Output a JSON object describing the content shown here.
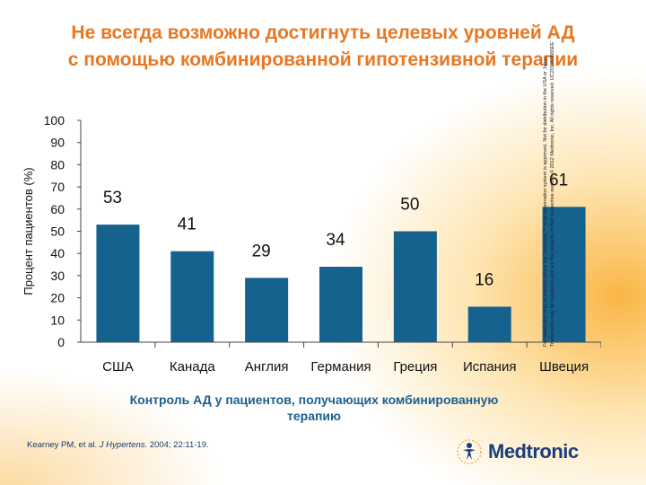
{
  "slide": {
    "title_line1": "Не всегда возможно достигнуть целевых уровней АД",
    "title_line2": "с помощью комбинированной гипотензивной терапии",
    "caption_line1": "Контроль АД у пациентов,  получающих комбинированную",
    "caption_line2": "терапию",
    "citation_authors": "Kearney PM, et al.",
    "citation_journal": "J Hypertens.",
    "citation_details": "2004; 22:11-19.",
    "disclaimer_line1": "For distribution only in markets where the Symplicity™ renal denervation system is approved. Not for distribution in the USA or Japan.",
    "disclaimer_line2": "Trademarks may be registered and are the property of their respective owners. © 2012 Medtronic, Inc. All rights reserved. UC201203565EE",
    "logo_text": "Medtronic",
    "accent_color": "#e87722",
    "bar_color": "#16628e",
    "caption_color": "#1b5f8f"
  },
  "chart_data": {
    "type": "bar",
    "categories": [
      "США",
      "Канада",
      "Англия",
      "Германия",
      "Греция",
      "Испания",
      "Швеция"
    ],
    "values": [
      53,
      41,
      29,
      34,
      50,
      16,
      61
    ],
    "data_labels": [
      "53",
      "41",
      "29",
      "34",
      "50",
      "16",
      "61"
    ],
    "ylabel": "Процент пациентов (%)",
    "xlabel": "",
    "ylim": [
      0,
      100
    ],
    "yticks": [
      0,
      10,
      20,
      30,
      40,
      50,
      60,
      70,
      80,
      90,
      100
    ],
    "grid": false,
    "legend": "none"
  }
}
